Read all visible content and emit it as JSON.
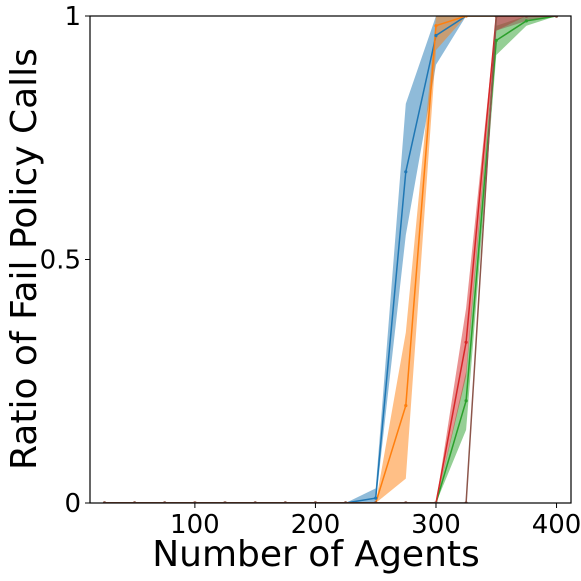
{
  "chart_data": {
    "type": "line",
    "title": "",
    "xlabel": "Number of Agents",
    "ylabel": "Ratio of Fail Policy Calls",
    "xlim": [
      13,
      412
    ],
    "ylim": [
      0,
      1
    ],
    "xticks": [
      100,
      200,
      300,
      400
    ],
    "xtick_labels": [
      "100",
      "200",
      "300",
      "400"
    ],
    "yticks": [
      0,
      0.5,
      1
    ],
    "ytick_labels": [
      "0",
      "0.5",
      "1"
    ],
    "grid": false,
    "legend": "none",
    "x": [
      25,
      50,
      75,
      100,
      125,
      150,
      175,
      200,
      225,
      250,
      275,
      300,
      325,
      350,
      375,
      400
    ],
    "series": [
      {
        "color": "#1f77b4",
        "values": [
          0,
          0,
          0,
          0,
          0,
          0,
          0,
          0,
          0,
          0.01,
          0.68,
          0.96,
          1.0,
          1.0,
          1.0,
          1.0
        ],
        "lower": [
          0,
          0,
          0,
          0,
          0,
          0,
          0,
          0,
          0,
          0.0,
          0.55,
          0.9,
          1.0,
          1.0,
          1.0,
          1.0
        ],
        "upper": [
          0,
          0,
          0,
          0,
          0,
          0,
          0,
          0,
          0,
          0.03,
          0.82,
          1.0,
          1.0,
          1.0,
          1.0,
          1.0
        ]
      },
      {
        "color": "#ff7f0e",
        "values": [
          0,
          0,
          0,
          0,
          0,
          0,
          0,
          0,
          0,
          0.0,
          0.2,
          0.98,
          1.0,
          1.0,
          1.0,
          1.0
        ],
        "lower": [
          0,
          0,
          0,
          0,
          0,
          0,
          0,
          0,
          0,
          0.0,
          0.05,
          0.93,
          1.0,
          1.0,
          1.0,
          1.0
        ],
        "upper": [
          0,
          0,
          0,
          0,
          0,
          0,
          0,
          0,
          0,
          0.0,
          0.35,
          1.0,
          1.0,
          1.0,
          1.0,
          1.0
        ]
      },
      {
        "color": "#2ca02c",
        "values": [
          0,
          0,
          0,
          0,
          0,
          0,
          0,
          0,
          0,
          0,
          0,
          0.0,
          0.21,
          0.95,
          0.99,
          1.0
        ],
        "lower": [
          0,
          0,
          0,
          0,
          0,
          0,
          0,
          0,
          0,
          0,
          0,
          0.0,
          0.15,
          0.92,
          0.98,
          1.0
        ],
        "upper": [
          0,
          0,
          0,
          0,
          0,
          0,
          0,
          0,
          0,
          0,
          0,
          0.0,
          0.27,
          0.98,
          1.0,
          1.0
        ]
      },
      {
        "color": "#d62728",
        "values": [
          0,
          0,
          0,
          0,
          0,
          0,
          0,
          0,
          0,
          0,
          0,
          0.0,
          0.33,
          1.0,
          1.0,
          1.0
        ],
        "lower": [
          0,
          0,
          0,
          0,
          0,
          0,
          0,
          0,
          0,
          0,
          0,
          0.0,
          0.26,
          0.97,
          1.0,
          1.0
        ],
        "upper": [
          0,
          0,
          0,
          0,
          0,
          0,
          0,
          0,
          0,
          0,
          0,
          0.0,
          0.4,
          1.0,
          1.0,
          1.0
        ]
      },
      {
        "color": "#8c564b",
        "values": [
          0,
          0,
          0,
          0,
          0,
          0,
          0,
          0,
          0,
          0,
          0,
          0.0,
          0.0,
          1.0,
          1.0,
          1.0
        ],
        "lower": [
          0,
          0,
          0,
          0,
          0,
          0,
          0,
          0,
          0,
          0,
          0,
          0.0,
          0.0,
          0.97,
          0.99,
          1.0
        ],
        "upper": [
          0,
          0,
          0,
          0,
          0,
          0,
          0,
          0,
          0,
          0,
          0,
          0.0,
          0.0,
          1.0,
          1.0,
          1.0
        ]
      }
    ]
  }
}
